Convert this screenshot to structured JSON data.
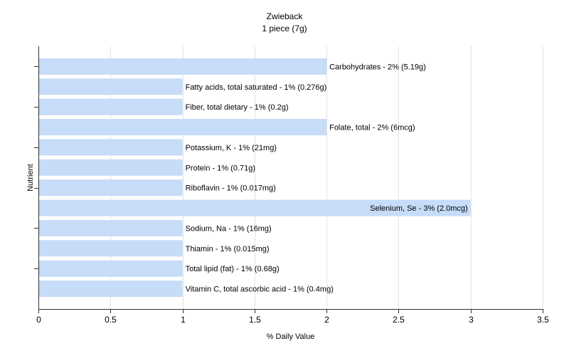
{
  "chart_data": {
    "type": "bar",
    "orientation": "horizontal",
    "title": "Zwieback",
    "subtitle": "1 piece (7g)",
    "xlabel": "% Daily Value",
    "ylabel": "Nutrient",
    "xlim": [
      0,
      3.5
    ],
    "xticks": [
      0,
      0.5,
      1,
      1.5,
      2,
      2.5,
      3,
      3.5
    ],
    "grid": true,
    "bar_color": "#c6dcf8",
    "categories": [
      "Carbohydrates - 2% (5.19g)",
      "Fatty acids, total saturated - 1% (0.276g)",
      "Fiber, total dietary - 1% (0.2g)",
      "Folate, total - 2% (6mcg)",
      "Potassium, K - 1% (21mg)",
      "Protein - 1% (0.71g)",
      "Riboflavin - 1% (0.017mg)",
      "Selenium, Se - 3% (2.0mcg)",
      "Sodium, Na - 1% (16mg)",
      "Thiamin - 1% (0.015mg)",
      "Total lipid (fat) - 1% (0.68g)",
      "Vitamin C, total ascorbic acid - 1% (0.4mg)"
    ],
    "values": [
      2,
      1,
      1,
      2,
      1,
      1,
      1,
      3,
      1,
      1,
      1,
      1
    ]
  }
}
